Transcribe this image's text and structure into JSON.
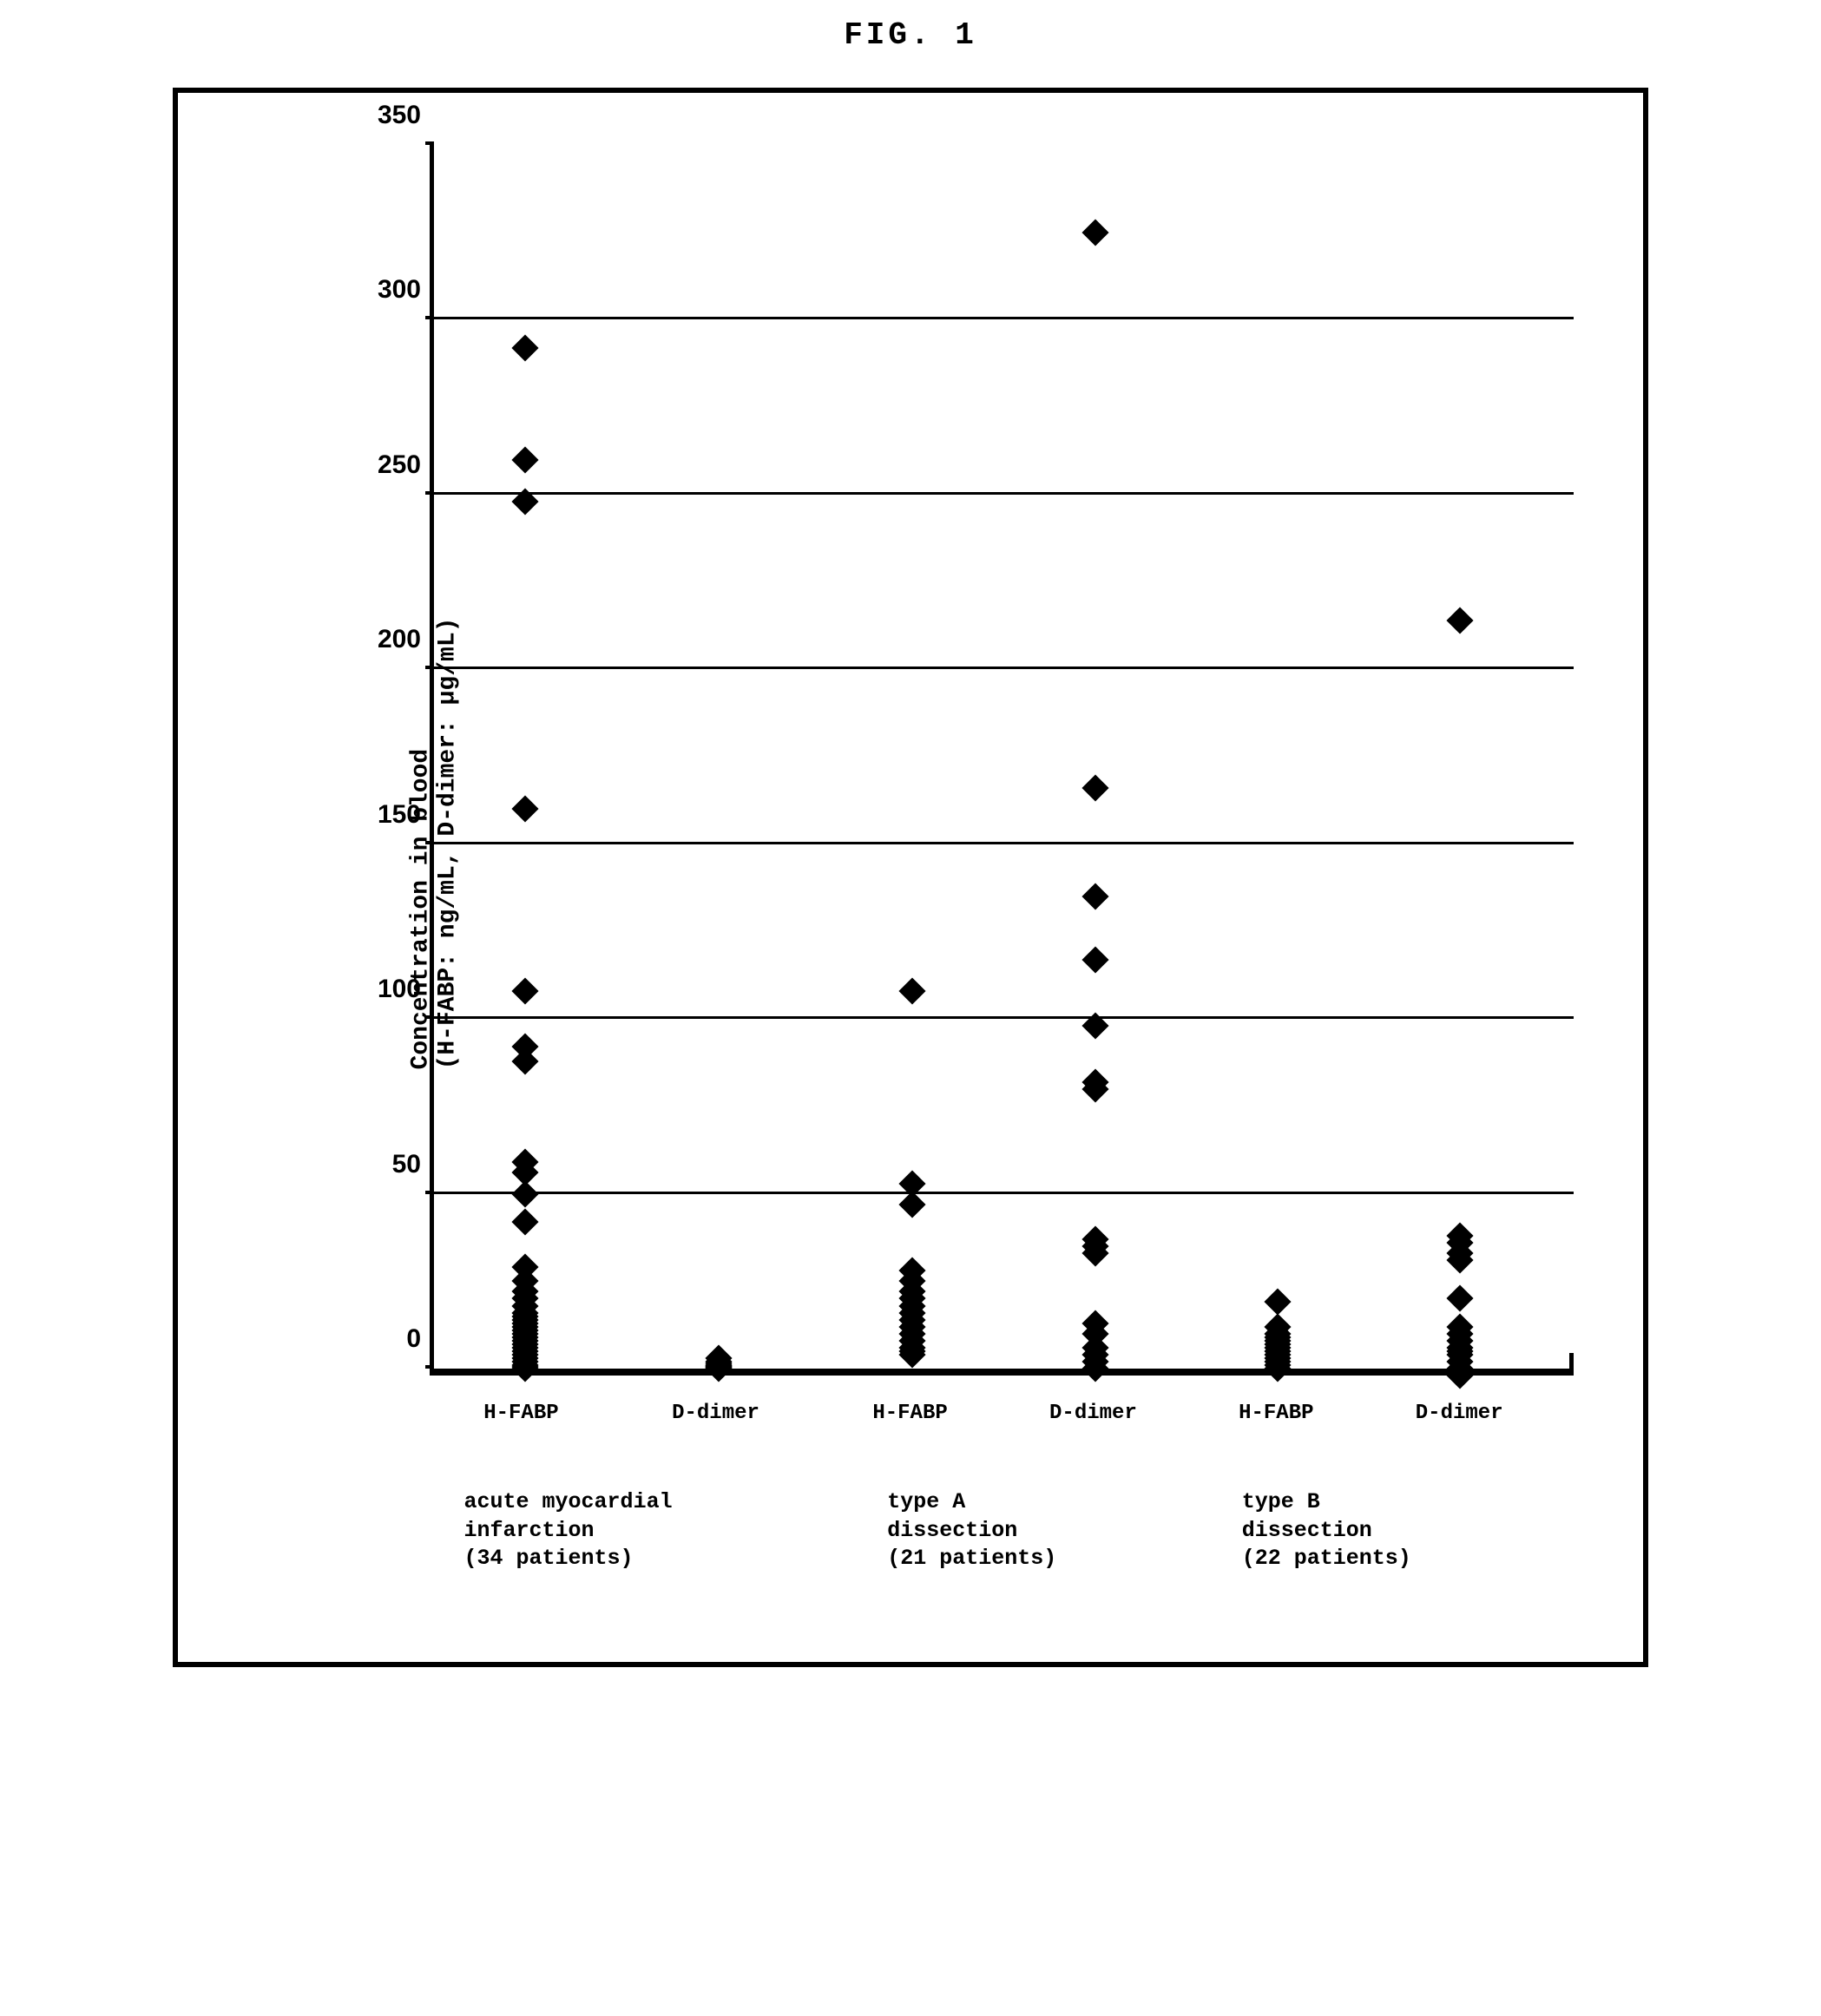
{
  "title": "FIG. 1",
  "chart": {
    "type": "scatter",
    "ylabel_line1": "Concentration in blood",
    "ylabel_line2": "(H-FABP: ng/mL, D-dimer: µg/mL)",
    "ylim": [
      0,
      350
    ],
    "ytick_step": 50,
    "yticks": [
      0,
      50,
      100,
      150,
      200,
      250,
      300,
      350
    ],
    "background_color": "#ffffff",
    "grid_color": "#000000",
    "marker_color": "#000000",
    "marker_shape": "diamond",
    "marker_size": 22,
    "border_color": "#000000",
    "label_fontsize": 28,
    "tick_fontsize": 30,
    "xlabel_fontsize": 24,
    "grouplabel_fontsize": 25,
    "x_categories": [
      {
        "label": "H-FABP",
        "x": 8
      },
      {
        "label": "D-dimer",
        "x": 25
      },
      {
        "label": "H-FABP",
        "x": 42
      },
      {
        "label": "D-dimer",
        "x": 58
      },
      {
        "label": "H-FABP",
        "x": 74
      },
      {
        "label": "D-dimer",
        "x": 90
      }
    ],
    "groups": [
      {
        "line1": "acute myocardial",
        "line2": "infarction",
        "line3": "(34 patients)",
        "x": 3
      },
      {
        "line1": "type A",
        "line2": "dissection",
        "line3": "(21 patients)",
        "x": 40
      },
      {
        "line1": "type B",
        "line2": "dissection",
        "line3": "(22 patients)",
        "x": 71
      }
    ],
    "series": [
      {
        "name": "AMI H-FABP",
        "x": 8,
        "values": [
          292,
          260,
          248,
          160,
          108,
          92,
          88,
          59,
          56,
          50,
          42,
          29,
          25,
          22,
          20,
          18,
          16,
          15,
          14,
          13,
          12,
          11,
          10,
          9,
          8,
          7,
          6,
          5,
          4,
          3,
          2,
          1,
          0.5,
          0
        ]
      },
      {
        "name": "AMI D-dimer",
        "x": 25,
        "values": [
          3,
          2,
          1.5,
          1,
          0.8,
          0.5,
          0.3,
          0
        ]
      },
      {
        "name": "TypeA H-FABP",
        "x": 42,
        "values": [
          108,
          53,
          47,
          28,
          25,
          22,
          20,
          18,
          16,
          14,
          12,
          10,
          8,
          6,
          5,
          4
        ]
      },
      {
        "name": "TypeA D-dimer",
        "x": 58,
        "values": [
          325,
          166,
          135,
          117,
          98,
          82,
          80,
          37,
          35,
          33,
          13,
          10,
          6,
          4,
          2,
          0
        ]
      },
      {
        "name": "TypeB H-FABP",
        "x": 74,
        "values": [
          19,
          12,
          10,
          9,
          8,
          7,
          6,
          5,
          4,
          3,
          2,
          1,
          0
        ]
      },
      {
        "name": "TypeB D-dimer",
        "x": 90,
        "values": [
          214,
          38,
          36,
          33,
          31,
          20,
          12,
          10,
          8,
          6,
          5,
          4,
          2,
          0,
          -2
        ]
      }
    ]
  }
}
